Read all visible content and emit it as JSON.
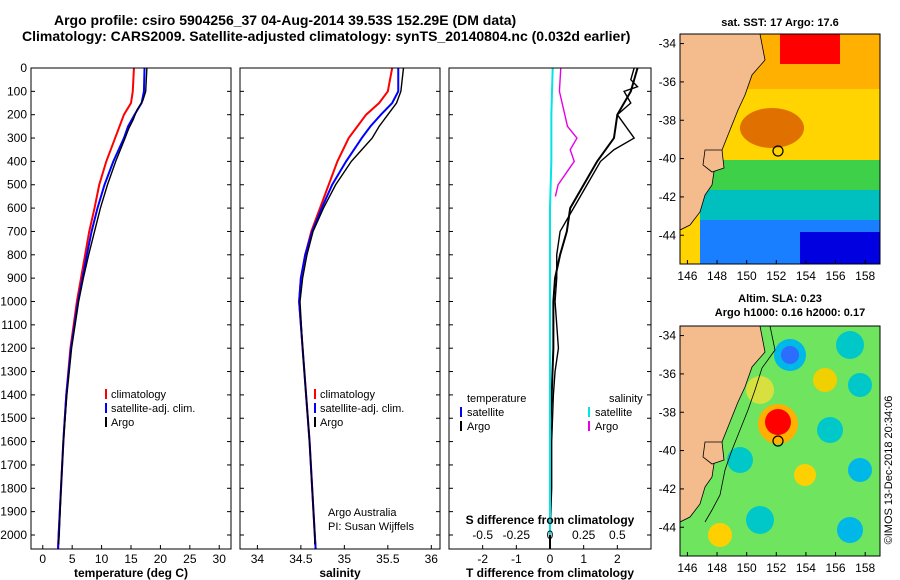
{
  "header": {
    "line1": "Argo profile: csiro 5904256_37 04-Aug-2014 39.53S 152.29E (DM data)",
    "line2": "Climatology: CARS2009. Satellite-adjusted climatology: synTS_20140804.nc (0.032d earlier)"
  },
  "chart_data": [
    {
      "type": "line",
      "xlabel": "temperature (deg C)",
      "xlim": [
        -2,
        32
      ],
      "ylim": [
        2060,
        0
      ],
      "xticks": [
        "0",
        "5",
        "10",
        "15",
        "20",
        "25",
        "30"
      ],
      "xtick_values": [
        0,
        5,
        10,
        15,
        20,
        25,
        30
      ],
      "yticks": [
        "0",
        "100",
        "200",
        "300",
        "400",
        "500",
        "600",
        "700",
        "800",
        "900",
        "1000",
        "1100",
        "1200",
        "1300",
        "1400",
        "1500",
        "1600",
        "1700",
        "1800",
        "1900",
        "2000"
      ],
      "legend": [
        "climatology",
        "satellite-adj. clim.",
        "Argo"
      ],
      "series": [
        {
          "name": "climatology",
          "color": "#ff0000",
          "depth": [
            0,
            100,
            150,
            200,
            300,
            400,
            500,
            600,
            700,
            800,
            1000,
            1200,
            1400,
            1600,
            1800,
            2000,
            2060
          ],
          "values": [
            15.5,
            15.3,
            15.0,
            13.8,
            12.3,
            10.8,
            9.6,
            8.8,
            7.9,
            7.2,
            5.8,
            4.7,
            4.0,
            3.5,
            3.1,
            2.7,
            2.6
          ]
        },
        {
          "name": "satellite-adj. clim.",
          "color": "#0000ff",
          "depth": [
            0,
            100,
            150,
            200,
            250,
            300,
            400,
            500,
            600,
            700,
            800,
            1000,
            1200,
            1400,
            1600,
            1800,
            2000,
            2060
          ],
          "values": [
            17.3,
            17.2,
            16.8,
            15.6,
            14.5,
            13.8,
            12.0,
            10.5,
            9.3,
            8.3,
            7.5,
            6.0,
            4.8,
            4.0,
            3.5,
            3.1,
            2.7,
            2.6
          ]
        },
        {
          "name": "Argo",
          "color": "#000000",
          "depth": [
            0,
            100,
            140,
            180,
            220,
            260,
            300,
            400,
            500,
            600,
            700,
            800,
            900,
            1000,
            1200,
            1400,
            1600,
            1800,
            2000,
            2040
          ],
          "values": [
            17.7,
            17.5,
            17.0,
            16.0,
            15.4,
            14.6,
            14.0,
            12.4,
            11.0,
            9.8,
            8.8,
            7.8,
            6.9,
            6.1,
            4.9,
            4.1,
            3.5,
            3.1,
            2.8,
            2.7
          ]
        }
      ]
    },
    {
      "type": "line",
      "xlabel": "salinity",
      "xlim": [
        33.8,
        36.1
      ],
      "ylim": [
        2060,
        0
      ],
      "xticks": [
        "34",
        "34.5",
        "35",
        "35.5",
        "36"
      ],
      "xtick_values": [
        34,
        34.5,
        35,
        35.5,
        36
      ],
      "legend": [
        "climatology",
        "satellite-adj. clim.",
        "Argo"
      ],
      "note": [
        "Argo Australia",
        "PI: Susan Wijffels"
      ],
      "series": [
        {
          "name": "climatology",
          "color": "#ff0000",
          "depth": [
            0,
            100,
            150,
            200,
            250,
            300,
            400,
            500,
            600,
            700,
            800,
            900,
            1000,
            1200,
            1400,
            1600,
            1800,
            2000,
            2060
          ],
          "values": [
            35.55,
            35.5,
            35.4,
            35.25,
            35.15,
            35.05,
            34.92,
            34.82,
            34.72,
            34.62,
            34.55,
            34.5,
            34.48,
            34.52,
            34.56,
            34.6,
            34.63,
            34.66,
            34.67
          ]
        },
        {
          "name": "satellite-adj. clim.",
          "color": "#0000ff",
          "depth": [
            0,
            100,
            150,
            200,
            250,
            300,
            400,
            500,
            600,
            700,
            800,
            900,
            1000,
            1200,
            1400,
            1600,
            1800,
            2000,
            2060
          ],
          "values": [
            35.62,
            35.62,
            35.55,
            35.42,
            35.3,
            35.2,
            35.02,
            34.86,
            34.74,
            34.63,
            34.55,
            34.5,
            34.48,
            34.52,
            34.56,
            34.6,
            34.63,
            34.66,
            34.67
          ]
        },
        {
          "name": "Argo",
          "color": "#000000",
          "depth": [
            0,
            100,
            150,
            200,
            250,
            300,
            350,
            400,
            500,
            600,
            700,
            800,
            900,
            1000,
            1200,
            1400,
            1600,
            1800,
            2000,
            2040
          ],
          "values": [
            35.68,
            35.65,
            35.6,
            35.5,
            35.4,
            35.32,
            35.2,
            35.08,
            34.9,
            34.76,
            34.64,
            34.57,
            34.52,
            34.49,
            34.52,
            34.56,
            34.6,
            34.63,
            34.66,
            34.66
          ]
        }
      ]
    },
    {
      "type": "line",
      "xlabel": "T difference from climatology",
      "xlim": [
        -3,
        3
      ],
      "ylim": [
        2060,
        0
      ],
      "xticks": [
        "-2",
        "-1",
        "0",
        "1",
        "2"
      ],
      "xtick_values": [
        -2,
        -1,
        0,
        1,
        2
      ],
      "s_axis_label": "S difference from climatology",
      "s_ticks": [
        "-0.5",
        "-0.25",
        "0",
        "0.25",
        "0.5"
      ],
      "s_tick_values": [
        -0.5,
        -0.25,
        0,
        0.25,
        0.5
      ],
      "legend_temperature": {
        "title": "temperature",
        "items": [
          "satellite",
          "Argo"
        ]
      },
      "legend_salinity": {
        "title": "salinity",
        "items": [
          "satellite",
          "Argo"
        ]
      },
      "series": [
        {
          "name": "satellite",
          "quantity": "temperature",
          "color": "#000000",
          "depth": [
            0,
            100,
            200,
            300,
            400,
            500,
            600,
            700,
            800,
            900,
            1000,
            1200,
            1400,
            1600,
            1800,
            2000,
            2060
          ],
          "values": [
            2.6,
            2.4,
            2.0,
            1.9,
            1.4,
            1.0,
            0.6,
            0.5,
            0.3,
            0.15,
            0.1,
            0.1,
            0.05,
            0.0,
            0.0,
            0.0,
            0.0
          ]
        },
        {
          "name": "Argo",
          "quantity": "temperature",
          "color": "#000000",
          "depth": [
            0,
            50,
            80,
            100,
            150,
            200,
            300,
            350,
            400,
            500,
            600,
            700,
            800,
            900,
            1000,
            1100,
            1200,
            1300,
            1400,
            1600,
            1800,
            2000,
            2040
          ],
          "values": [
            2.5,
            2.4,
            2.6,
            2.2,
            2.4,
            2.0,
            2.5,
            1.9,
            1.5,
            1.1,
            0.7,
            0.3,
            0.2,
            0.2,
            0.15,
            0.2,
            0.25,
            0.15,
            0.1,
            0.05,
            0.05,
            0.0,
            0.0
          ]
        },
        {
          "name": "satellite",
          "quantity": "salinity",
          "color": "#00e5e5",
          "depth": [
            0,
            200,
            400,
            600,
            800,
            1000,
            1200,
            1400,
            1600,
            1800,
            2000
          ],
          "values": [
            0.02,
            0.01,
            0.01,
            0.0,
            0.0,
            0.0,
            0.0,
            0.0,
            0.0,
            0.0,
            0.0
          ]
        },
        {
          "name": "Argo",
          "quantity": "salinity",
          "color": "#e600e6",
          "depth": [
            0,
            100,
            200,
            250,
            300,
            350,
            400,
            450,
            500,
            550
          ],
          "values": [
            0.08,
            0.07,
            0.11,
            0.13,
            0.2,
            0.15,
            0.18,
            0.12,
            0.06,
            0.04
          ]
        }
      ]
    }
  ],
  "maps": [
    {
      "title": "sat. SST: 17 Argo: 17.6",
      "x_ticks": [
        "146",
        "148",
        "150",
        "152",
        "154",
        "156",
        "158"
      ],
      "y_ticks": [
        "-34",
        "-36",
        "-38",
        "-40",
        "-42",
        "-44"
      ],
      "marker": {
        "lon": 152.29,
        "lat": -39.53
      }
    },
    {
      "title_line1": "Altim. SLA: 0.23",
      "title_line2": "Argo h1000: 0.16 h2000: 0.17",
      "x_ticks": [
        "146",
        "148",
        "150",
        "152",
        "154",
        "156",
        "158"
      ],
      "y_ticks": [
        "-34",
        "-36",
        "-38",
        "-40",
        "-42",
        "-44"
      ],
      "marker": {
        "lon": 152.29,
        "lat": -39.53
      }
    }
  ],
  "credit": "©IMOS 13-Dec-2018 20:34:06"
}
